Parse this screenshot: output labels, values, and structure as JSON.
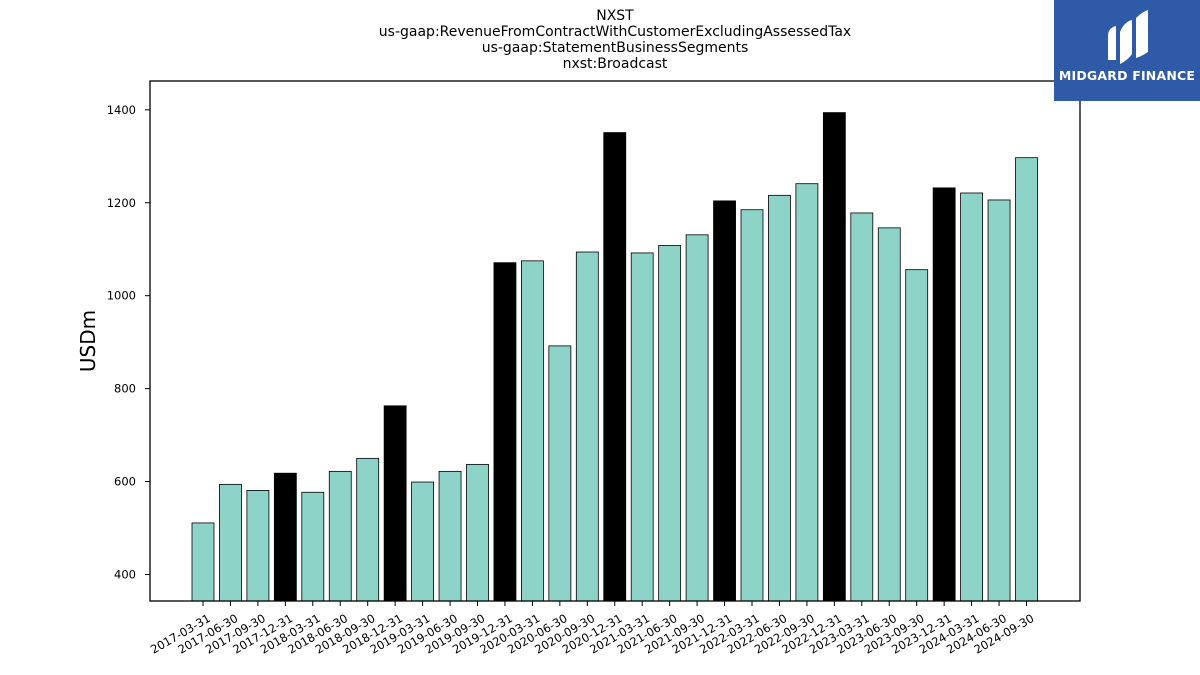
{
  "title_lines": [
    "NXST",
    "us-gaap:RevenueFromContractWithCustomerExcludingAssessedTax",
    "us-gaap:StatementBusinessSegments",
    "nxst:Broadcast"
  ],
  "logo": {
    "text": "MIDGARD FINANCE",
    "color": "#2f5aa8",
    "icon": "midgard-logo-icon"
  },
  "colors": {
    "quarter_bar": "#8dd3c7",
    "year_end_bar": "#000000"
  },
  "chart_data": {
    "type": "bar",
    "title": "NXST",
    "subtitle": "us-gaap:RevenueFromContractWithCustomerExcludingAssessedTax / us-gaap:StatementBusinessSegments / nxst:Broadcast",
    "xlabel": "",
    "ylabel": "USDm",
    "ylim": [
      343,
      1462
    ],
    "yticks": [
      400,
      600,
      800,
      1000,
      1200,
      1400
    ],
    "grid": false,
    "categories": [
      "2017-03-31",
      "2017-06-30",
      "2017-09-30",
      "2017-12-31",
      "2018-03-31",
      "2018-06-30",
      "2018-09-30",
      "2018-12-31",
      "2019-03-31",
      "2019-06-30",
      "2019-09-30",
      "2019-12-31",
      "2020-03-31",
      "2020-06-30",
      "2020-09-30",
      "2020-12-31",
      "2021-03-31",
      "2021-06-30",
      "2021-09-30",
      "2021-12-31",
      "2022-03-31",
      "2022-06-30",
      "2022-09-30",
      "2022-12-31",
      "2023-03-31",
      "2023-06-30",
      "2023-09-30",
      "2023-12-31",
      "2024-03-31",
      "2024-06-30",
      "2024-09-30"
    ],
    "values": [
      511,
      594,
      581,
      618,
      577,
      622,
      650,
      763,
      599,
      622,
      637,
      1071,
      1075,
      892,
      1094,
      1351,
      1092,
      1108,
      1131,
      1204,
      1185,
      1216,
      1241,
      1394,
      1178,
      1146,
      1056,
      1232,
      1221,
      1206,
      1297
    ],
    "year_end": [
      false,
      false,
      false,
      true,
      false,
      false,
      false,
      true,
      false,
      false,
      false,
      true,
      false,
      false,
      false,
      true,
      false,
      false,
      false,
      true,
      false,
      false,
      false,
      true,
      false,
      false,
      false,
      true,
      false,
      false,
      false
    ]
  }
}
